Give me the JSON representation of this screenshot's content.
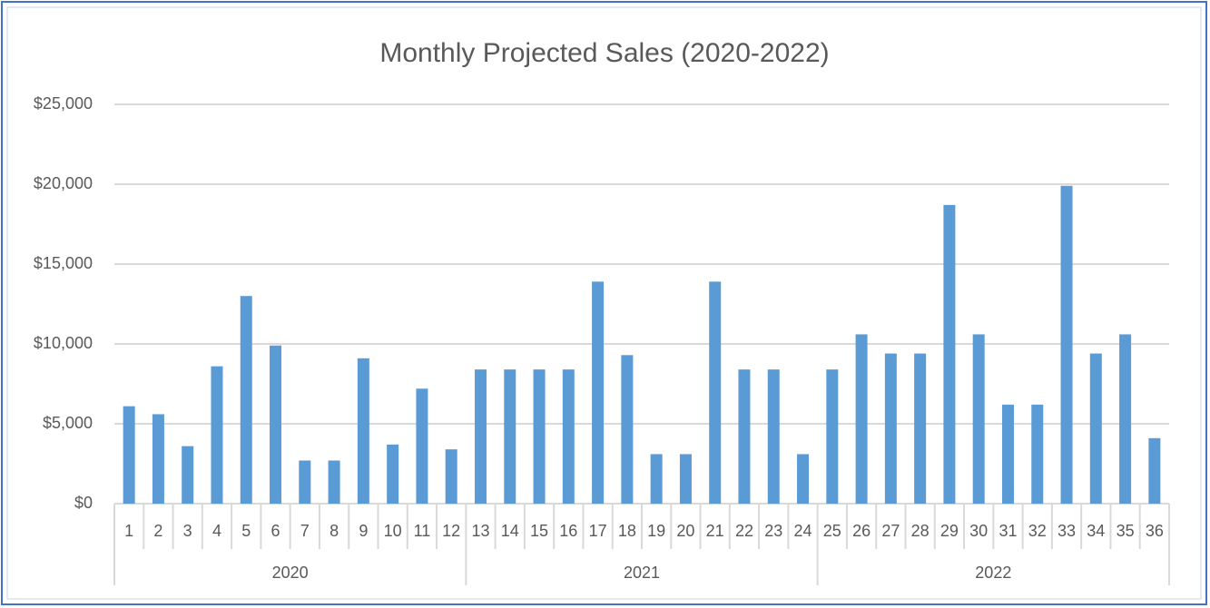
{
  "chart_data": {
    "type": "bar",
    "title": "Monthly Projected Sales (2020-2022)",
    "categories": [
      "1",
      "2",
      "3",
      "4",
      "5",
      "6",
      "7",
      "8",
      "9",
      "10",
      "11",
      "12",
      "13",
      "14",
      "15",
      "16",
      "17",
      "18",
      "19",
      "20",
      "21",
      "22",
      "23",
      "24",
      "25",
      "26",
      "27",
      "28",
      "29",
      "30",
      "31",
      "32",
      "33",
      "34",
      "35",
      "36"
    ],
    "groups": [
      "2020",
      "2021",
      "2022"
    ],
    "values": [
      6100,
      5600,
      3600,
      8600,
      13000,
      9900,
      2700,
      2700,
      9100,
      3700,
      7200,
      3400,
      8400,
      8400,
      8400,
      8400,
      13900,
      9300,
      3100,
      3100,
      13900,
      8400,
      8400,
      3100,
      8400,
      10600,
      9400,
      9400,
      18700,
      10600,
      6200,
      6200,
      19900,
      9400,
      10600,
      4100
    ],
    "color": "#5b9bd5",
    "ylim": [
      0,
      25000
    ],
    "yticks": [
      {
        "value": 0,
        "label": "$0"
      },
      {
        "value": 5000,
        "label": "$5,000"
      },
      {
        "value": 10000,
        "label": "$10,000"
      },
      {
        "value": 15000,
        "label": "$15,000"
      },
      {
        "value": 20000,
        "label": "$20,000"
      },
      {
        "value": 25000,
        "label": "$25,000"
      }
    ],
    "grid": true
  }
}
